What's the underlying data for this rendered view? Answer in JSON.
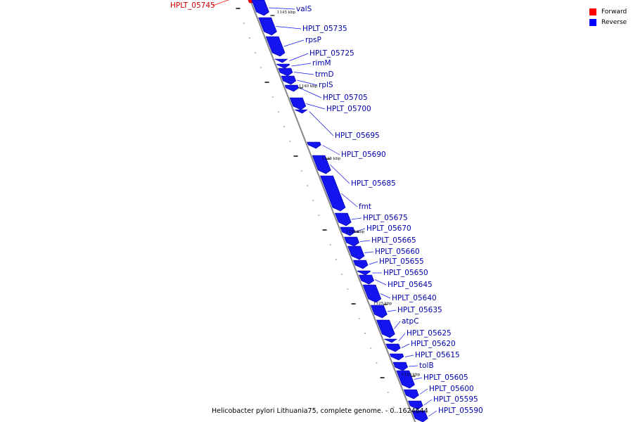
{
  "caption": "Helicobacter pylori Lithuania75, complete genome. - 0..1624644",
  "legend": [
    {
      "label": "Forward",
      "color": "#ff0000"
    },
    {
      "label": "Reverse",
      "color": "#0000ff"
    }
  ],
  "colors": {
    "forward": "#ff0000",
    "reverse": "#1414ee",
    "label": "#0000aa",
    "forward_label": "#cc0000",
    "backbone": "#888888"
  },
  "genes": [
    {
      "name": "HPLT_05745",
      "strand": "forward"
    },
    {
      "name": "valS",
      "strand": "reverse"
    },
    {
      "name": "HPLT_05735",
      "strand": "reverse"
    },
    {
      "name": "rpsP",
      "strand": "reverse"
    },
    {
      "name": "HPLT_05725",
      "strand": "reverse"
    },
    {
      "name": "rimM",
      "strand": "reverse"
    },
    {
      "name": "trmD",
      "strand": "reverse"
    },
    {
      "name": "rplS",
      "strand": "reverse"
    },
    {
      "name": "HPLT_05705",
      "strand": "reverse"
    },
    {
      "name": "HPLT_05700",
      "strand": "reverse"
    },
    {
      "name": "HPLT_05695",
      "strand": "reverse"
    },
    {
      "name": "HPLT_05690",
      "strand": "reverse"
    },
    {
      "name": "HPLT_05685",
      "strand": "reverse"
    },
    {
      "name": "fmt",
      "strand": "reverse"
    },
    {
      "name": "HPLT_05675",
      "strand": "reverse"
    },
    {
      "name": "HPLT_05670",
      "strand": "reverse"
    },
    {
      "name": "HPLT_05665",
      "strand": "reverse"
    },
    {
      "name": "HPLT_05660",
      "strand": "reverse"
    },
    {
      "name": "HPLT_05655",
      "strand": "reverse"
    },
    {
      "name": "HPLT_05650",
      "strand": "reverse"
    },
    {
      "name": "HPLT_05645",
      "strand": "reverse"
    },
    {
      "name": "HPLT_05640",
      "strand": "reverse"
    },
    {
      "name": "HPLT_05635",
      "strand": "reverse"
    },
    {
      "name": "atpC",
      "strand": "reverse"
    },
    {
      "name": "HPLT_05625",
      "strand": "reverse"
    },
    {
      "name": "HPLT_05620",
      "strand": "reverse"
    },
    {
      "name": "HPLT_05615",
      "strand": "reverse"
    },
    {
      "name": "tolB",
      "strand": "reverse"
    },
    {
      "name": "HPLT_05605",
      "strand": "reverse"
    },
    {
      "name": "HPLT_05600",
      "strand": "reverse"
    },
    {
      "name": "HPLT_05595",
      "strand": "reverse"
    },
    {
      "name": "HPLT_05590",
      "strand": "reverse"
    }
  ],
  "ticks": [
    "1145 kbp",
    "1140 kbp",
    "1135 kbp",
    "1130 kbp",
    "1125 kbp",
    "1120 kbp"
  ]
}
